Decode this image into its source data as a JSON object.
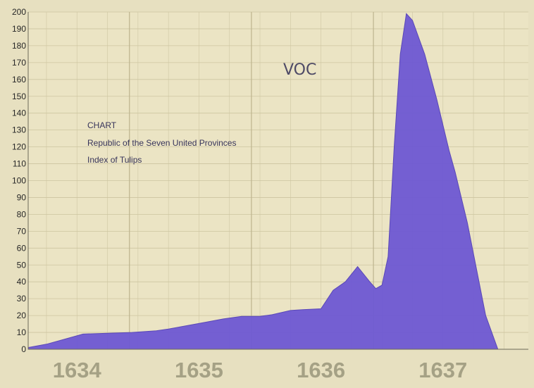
{
  "chart_data": {
    "type": "area",
    "title_lines": [
      "CHART",
      "Republic of the Seven United Provinces",
      "Index of Tulips"
    ],
    "logo": "VOC",
    "ylim": [
      0,
      200
    ],
    "y_ticks": [
      0,
      10,
      20,
      30,
      40,
      50,
      60,
      70,
      80,
      90,
      100,
      110,
      120,
      130,
      140,
      150,
      160,
      170,
      180,
      190,
      200
    ],
    "x_range": [
      1633.85,
      1637.95
    ],
    "year_labels": [
      "1634",
      "1635",
      "1636",
      "1637"
    ],
    "grid": true,
    "fill_color": "#6e5ad2",
    "series": [
      {
        "x": [
          1633.85,
          1634.0,
          1634.15,
          1634.3,
          1634.5,
          1634.7,
          1634.9,
          1635.0,
          1635.15,
          1635.3,
          1635.45,
          1635.6,
          1635.75,
          1635.85,
          1636.0,
          1636.1,
          1636.25,
          1636.35,
          1636.45,
          1636.55,
          1636.65,
          1636.7,
          1636.75,
          1636.8,
          1636.85,
          1636.9,
          1636.95,
          1637.0,
          1637.1,
          1637.2,
          1637.3,
          1637.35,
          1637.45,
          1637.6,
          1637.7
        ],
        "y": [
          1,
          3,
          6,
          9,
          9.5,
          10,
          11,
          12,
          14,
          16,
          18,
          19.5,
          19.5,
          20.5,
          23,
          23.5,
          24,
          35,
          40,
          49,
          40,
          36,
          38,
          55,
          120,
          175,
          199,
          195,
          175,
          148,
          118,
          105,
          75,
          20,
          0
        ]
      }
    ]
  }
}
